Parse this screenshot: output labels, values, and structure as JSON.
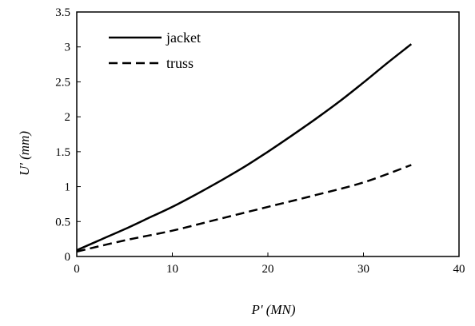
{
  "chart_data": {
    "type": "line",
    "title": "",
    "xlabel": "P' (MN)",
    "ylabel": "U' (mm)",
    "xlim": [
      0,
      40
    ],
    "ylim": [
      0,
      3.5
    ],
    "x_ticks": [
      "0",
      "10",
      "20",
      "30",
      "40"
    ],
    "y_ticks": [
      "0",
      "0.5",
      "1",
      "1.5",
      "2",
      "2.5",
      "3",
      "3.5"
    ],
    "grid": false,
    "legend_position": "top-left",
    "series": [
      {
        "name": "jacket",
        "style": "solid",
        "color": "#000000",
        "x": [
          0,
          2.5,
          5,
          7.5,
          10,
          12.5,
          15,
          17.5,
          20,
          22.5,
          25,
          27.5,
          30,
          32.5,
          35
        ],
        "y": [
          0.09,
          0.24,
          0.39,
          0.55,
          0.71,
          0.89,
          1.08,
          1.28,
          1.5,
          1.73,
          1.97,
          2.22,
          2.49,
          2.77,
          3.04
        ]
      },
      {
        "name": "truss",
        "style": "dashed",
        "color": "#000000",
        "x": [
          0,
          5,
          10,
          15,
          20,
          25,
          30,
          35
        ],
        "y": [
          0.07,
          0.23,
          0.37,
          0.54,
          0.71,
          0.88,
          1.06,
          1.31
        ]
      }
    ]
  }
}
